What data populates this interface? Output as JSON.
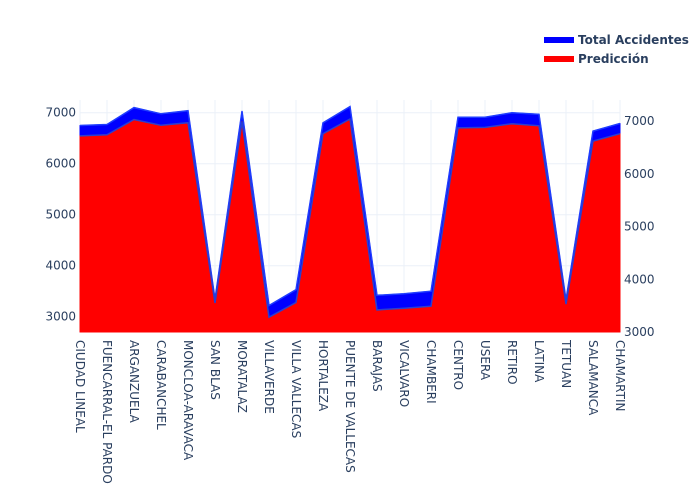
{
  "chart_data": {
    "type": "area",
    "categories": [
      "CIUDAD LINEAL",
      "FUENCARRAL-EL PARDO",
      "ARGANZUELA",
      "CARABANCHEL",
      "MONCLOA-ARAVACA",
      "SAN BLAS",
      "MORATALAZ",
      "VILLAVERDE",
      "VILLA VALLECAS",
      "HORTALEZA",
      "PUENTE DE VALLECAS",
      "BARAJAS",
      "VICALVARO",
      "CHAMBERI",
      "CENTRO",
      "USERA",
      "RETIRO",
      "LATINA",
      "TETUAN",
      "SALAMANCA",
      "CHAMARTIN"
    ],
    "series": [
      {
        "name": "Total Accidentes",
        "color": "#0000ff",
        "axis": "left",
        "values": [
          6750,
          6770,
          7100,
          6980,
          7040,
          3340,
          7030,
          3220,
          3530,
          6800,
          7120,
          3420,
          3450,
          3500,
          6910,
          6910,
          7000,
          6970,
          3330,
          6640,
          6790
        ]
      },
      {
        "name": "Predicción",
        "color": "#ff0000",
        "axis": "right",
        "values": [
          6720,
          6740,
          7030,
          6920,
          6970,
          3550,
          6990,
          3280,
          3560,
          6760,
          7040,
          3420,
          3450,
          3490,
          6870,
          6880,
          6950,
          6910,
          3530,
          6620,
          6760
        ]
      }
    ],
    "y_left": {
      "range": [
        2700,
        7250
      ],
      "ticks": [
        "3000",
        "4000",
        "5000",
        "6000",
        "7000"
      ]
    },
    "y_right": {
      "range": [
        3000,
        7400
      ],
      "ticks": [
        "3000",
        "4000",
        "5000",
        "6000",
        "7000"
      ]
    },
    "grid": true,
    "legend_position": "top-right"
  }
}
